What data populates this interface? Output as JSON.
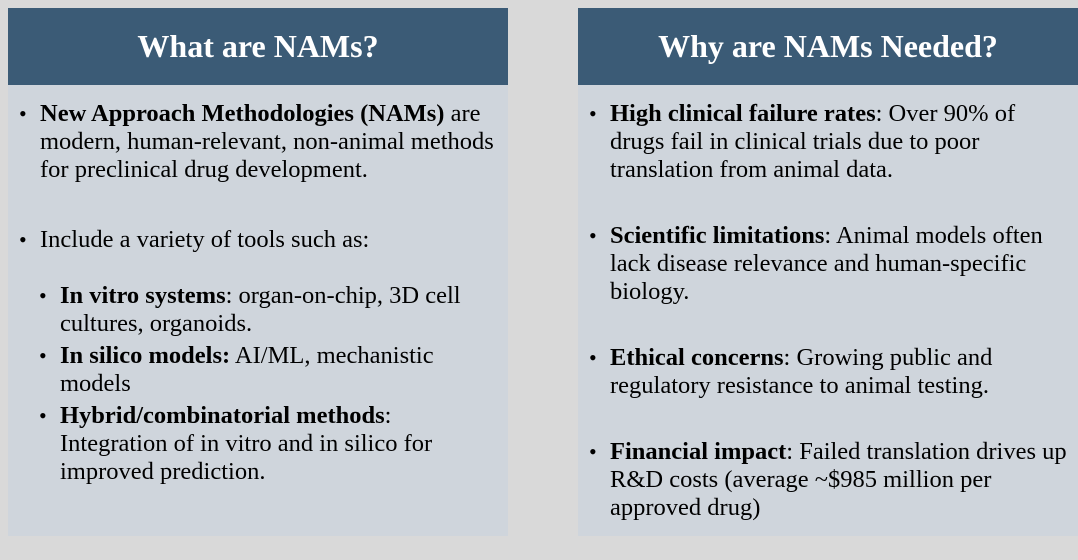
{
  "left": {
    "header": "What are NAMs?",
    "item1": {
      "bold": "New Approach Methodologies (NAMs)",
      "text": " are modern, human-relevant, non-animal methods for preclinical drug development."
    },
    "item2": {
      "text": "Include a variety of tools such as:"
    },
    "subitems": [
      {
        "bold": "In vitro systems",
        "text": ": organ-on-chip, 3D cell cultures, organoids."
      },
      {
        "bold": "In silico models:",
        "text": " AI/ML, mechanistic models"
      },
      {
        "bold": "Hybrid/combinatorial methods",
        "text": ": Integration of in vitro and in silico for improved prediction."
      }
    ]
  },
  "right": {
    "header": "Why are NAMs Needed?",
    "items": [
      {
        "bold": "High clinical failure rates",
        "text": ": Over 90% of drugs fail in clinical trials due to poor translation from animal data."
      },
      {
        "bold": "Scientific limitations",
        "text": ": Animal models often lack disease relevance and human-specific biology."
      },
      {
        "bold": "Ethical concerns",
        "text": ": Growing public and regulatory resistance to animal testing."
      },
      {
        "bold": "Financial impact",
        "text": ": Failed translation drives up R&D costs (average ~$985 million per approved drug)"
      }
    ]
  },
  "bullet_glyph": "•",
  "colors": {
    "header_bg": "#3b5b76",
    "panel_bg": "#cfd5dc",
    "page_bg": "#d9d9d9"
  }
}
